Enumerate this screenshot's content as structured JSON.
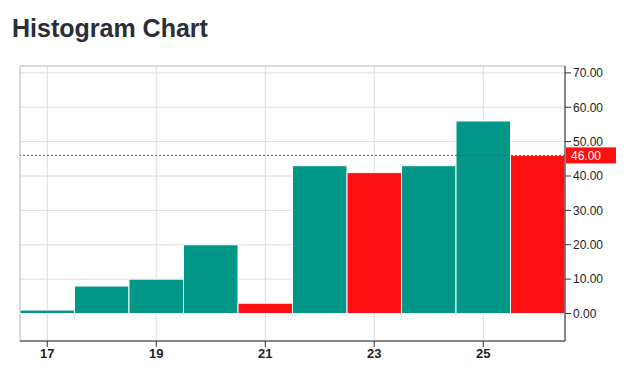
{
  "chart_data": {
    "type": "histogram",
    "title": "Histogram Chart",
    "bins": [
      16.5,
      17.5,
      18.5,
      19.5,
      20.5,
      21.5,
      22.5,
      23.5,
      24.5,
      25.5,
      26.5
    ],
    "values": [
      1,
      8,
      10,
      20,
      3,
      43,
      41,
      43,
      56,
      46
    ],
    "colors": [
      "#009688",
      "#009688",
      "#009688",
      "#009688",
      "#ff1010",
      "#009688",
      "#ff1010",
      "#009688",
      "#009688",
      "#ff1010"
    ],
    "xlim": [
      16.5,
      26.5
    ],
    "xticks": [
      17,
      19,
      21,
      23,
      25
    ],
    "ylim": [
      -8,
      72
    ],
    "yticks": [
      {
        "value": 0,
        "label": "0.00"
      },
      {
        "value": 10,
        "label": "10.00"
      },
      {
        "value": 20,
        "label": "20.00"
      },
      {
        "value": 30,
        "label": "30.00"
      },
      {
        "value": 40,
        "label": "40.00"
      },
      {
        "value": 50,
        "label": "50.00"
      },
      {
        "value": 60,
        "label": "60.00"
      },
      {
        "value": 70,
        "label": "70.00"
      }
    ],
    "grid": true,
    "annotations": [
      {
        "y": 46,
        "label": "46.00",
        "color": "#ff1010"
      }
    ]
  }
}
